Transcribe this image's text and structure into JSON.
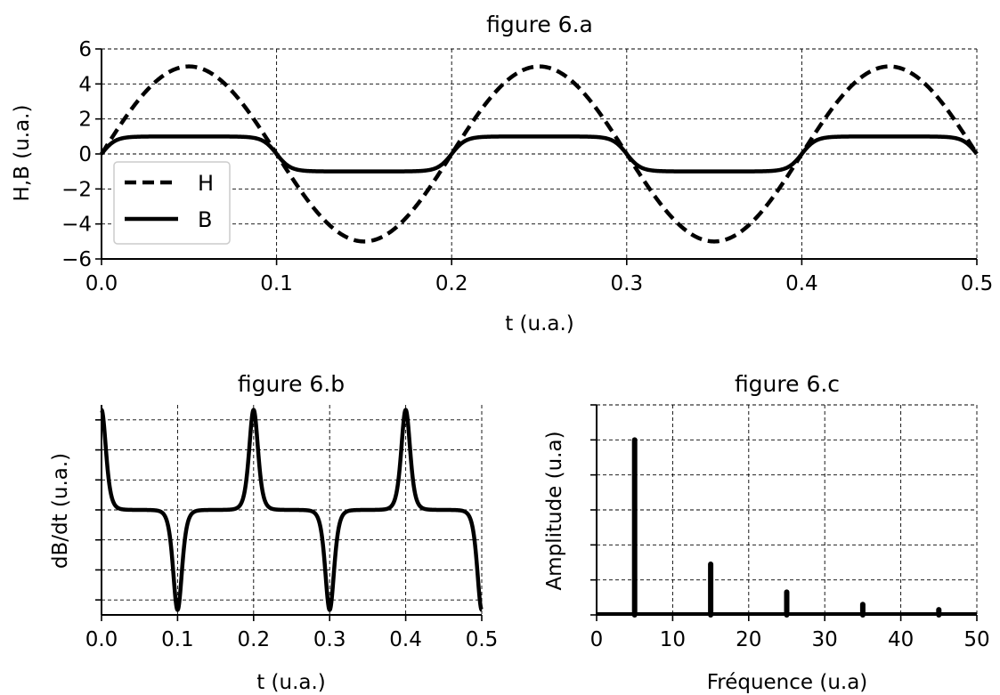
{
  "chart_data": [
    {
      "id": "a",
      "type": "line",
      "title": "figure 6.a",
      "xlabel": "t (u.a.)",
      "ylabel": "H,B (u.a.)",
      "xlim": [
        0,
        0.5
      ],
      "ylim": [
        -6,
        6
      ],
      "xticks": [
        0.0,
        0.1,
        0.2,
        0.3,
        0.4,
        0.5
      ],
      "xtick_labels": [
        "0.0",
        "0.1",
        "0.2",
        "0.3",
        "0.4",
        "0.5"
      ],
      "yticks": [
        -6,
        -4,
        -2,
        0,
        2,
        4,
        6
      ],
      "ytick_labels": [
        "−6",
        "−4",
        "−2",
        "0",
        "2",
        "4",
        "6"
      ],
      "grid": true,
      "legend": "lower-left",
      "series": [
        {
          "name": "H",
          "style": "dashed",
          "color": "#000000",
          "amplitude": 5,
          "frequency": 5,
          "formula": "5*sin(2*pi*5*t)"
        },
        {
          "name": "B",
          "style": "solid",
          "color": "#000000",
          "amplitude": 1,
          "frequency": 5,
          "formula": "tanh(4*sin(2*pi*5*t))"
        }
      ]
    },
    {
      "id": "b",
      "type": "line",
      "title": "figure 6.b",
      "xlabel": "t (u.a.)",
      "ylabel": "dB/dt (u.a.)",
      "xlim": [
        0,
        0.5
      ],
      "ylim": [
        -1.05,
        1.05
      ],
      "xticks": [
        0.0,
        0.1,
        0.2,
        0.3,
        0.4,
        0.5
      ],
      "xtick_labels": [
        "0.0",
        "0.1",
        "0.2",
        "0.3",
        "0.4",
        "0.5"
      ],
      "yticks": [
        -0.9,
        -0.6,
        -0.3,
        0,
        0.3,
        0.6,
        0.9
      ],
      "grid": true,
      "series": [
        {
          "style": "solid",
          "color": "#000000",
          "frequency": 5,
          "formula": "normalized derivative of tanh(4*sin(2*pi*5*t))"
        }
      ]
    },
    {
      "id": "c",
      "type": "bar",
      "title": "figure 6.c",
      "xlabel": "Fréquence (u.a)",
      "ylabel": "Amplitude (u.a)",
      "xlim": [
        0,
        50
      ],
      "ylim": [
        0,
        1.2
      ],
      "xticks": [
        0,
        10,
        20,
        30,
        40,
        50
      ],
      "xtick_labels": [
        "0",
        "10",
        "20",
        "30",
        "40",
        "50"
      ],
      "yticks": [
        0,
        0.2,
        0.4,
        0.6,
        0.8,
        1.0,
        1.2
      ],
      "grid": true,
      "x": [
        5,
        15,
        25,
        35,
        45
      ],
      "values": [
        1.0,
        0.29,
        0.13,
        0.06,
        0.03
      ]
    }
  ]
}
